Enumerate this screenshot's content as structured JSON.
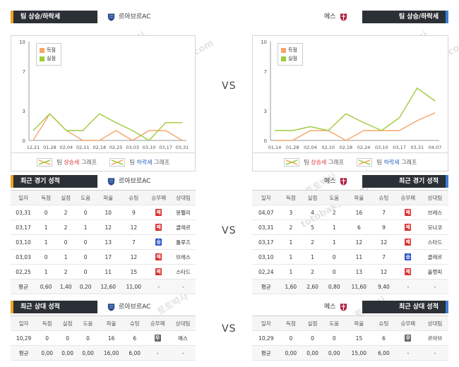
{
  "vs_label": "VS",
  "watermarks": [
    "토토박사",
    "totobaksa.com"
  ],
  "left_team": {
    "name": "르아브르AC"
  },
  "right_team": {
    "name": "메스"
  },
  "trend": {
    "left_title": "팀 상승/하락세",
    "right_title": "팀 상승/하락세",
    "legend_scored": "득점",
    "legend_conceded": "실점",
    "bottom_legend": {
      "prefix": "팀",
      "up": "상승세",
      "down": "하락세",
      "suffix": "그래프"
    }
  },
  "recent": {
    "left_title": "최근 경기 성적",
    "right_title": "최근 경기 성적",
    "headers": [
      "일자",
      "득점",
      "실점",
      "도움",
      "파울",
      "슈팅",
      "승무패",
      "상대팀"
    ],
    "left_rows": [
      [
        "03,31",
        "0",
        "2",
        "0",
        "10",
        "9",
        "패",
        "몽펠리"
      ],
      [
        "03,17",
        "1",
        "2",
        "1",
        "12",
        "12",
        "패",
        "클레르"
      ],
      [
        "03,10",
        "1",
        "0",
        "0",
        "13",
        "7",
        "승",
        "툴루즈"
      ],
      [
        "03,03",
        "0",
        "1",
        "0",
        "17",
        "12",
        "패",
        "브레스"
      ],
      [
        "02,25",
        "1",
        "2",
        "0",
        "11",
        "15",
        "패",
        "스타드"
      ]
    ],
    "left_avg": [
      "평균",
      "0,60",
      "1,40",
      "0,20",
      "12,60",
      "11,00",
      "-",
      "-"
    ],
    "right_rows": [
      [
        "04,07",
        "3",
        "4",
        "2",
        "16",
        "7",
        "패",
        "브레스"
      ],
      [
        "03,31",
        "2",
        "5",
        "1",
        "6",
        "9",
        "패",
        "모나코"
      ],
      [
        "03,17",
        "1",
        "2",
        "1",
        "12",
        "12",
        "패",
        "스타드"
      ],
      [
        "03,10",
        "1",
        "1",
        "0",
        "11",
        "7",
        "승",
        "클레르"
      ],
      [
        "02,24",
        "1",
        "2",
        "0",
        "13",
        "12",
        "패",
        "올랭피"
      ]
    ],
    "right_avg": [
      "평균",
      "1,60",
      "2,60",
      "0,80",
      "11,60",
      "9,40",
      "-",
      "-"
    ]
  },
  "h2h": {
    "left_title": "최근 상대 성적",
    "right_title": "최근 상대 성적",
    "headers": [
      "일자",
      "득점",
      "실점",
      "도움",
      "파울",
      "슈팅",
      "승무패",
      "상대팀"
    ],
    "left_rows": [
      [
        "10,29",
        "0",
        "0",
        "0",
        "16",
        "6",
        "무",
        "메스"
      ]
    ],
    "left_avg": [
      "평균",
      "0,00",
      "0,00",
      "0,00",
      "16,00",
      "6,00",
      "-",
      "-"
    ],
    "right_rows": [
      [
        "10,29",
        "0",
        "0",
        "0",
        "15",
        "6",
        "무",
        "르아브"
      ]
    ],
    "right_avg": [
      "평균",
      "0,00",
      "0,00",
      "0,00",
      "15,00",
      "6,00",
      "-",
      "-"
    ]
  },
  "colors": {
    "scored": "#f5a66a",
    "conceded": "#9ccc3a",
    "win": "#2a55c8",
    "lose": "#d83030",
    "draw": "#666666"
  },
  "chart_data": [
    {
      "type": "line",
      "ylim": [
        0,
        10
      ],
      "yticks": [
        "0",
        "3",
        "7",
        "10"
      ],
      "x": [
        "12,21",
        "01,28",
        "02,04",
        "02,11",
        "02,18",
        "02,25",
        "03,03",
        "03,10",
        "03,17",
        "03,31"
      ],
      "series": [
        {
          "name": "득점",
          "values": [
            0,
            2.7,
            1,
            0,
            0,
            1,
            0,
            1,
            1,
            0
          ]
        },
        {
          "name": "실점",
          "values": [
            1,
            2.7,
            1,
            1,
            2.7,
            1.8,
            1,
            0,
            1.8,
            1.8
          ]
        }
      ]
    },
    {
      "type": "line",
      "ylim": [
        0,
        10
      ],
      "yticks": [
        "0",
        "3",
        "7",
        "10"
      ],
      "x": [
        "01,14",
        "01,28",
        "02,04",
        "02,10",
        "02,18",
        "02,24",
        "03,10",
        "03,17",
        "03,31",
        "04,07"
      ],
      "series": [
        {
          "name": "득점",
          "values": [
            0,
            0,
            1,
            1,
            0,
            1,
            1,
            1,
            2,
            2.8
          ]
        },
        {
          "name": "실점",
          "values": [
            1,
            1,
            1.4,
            1,
            2.7,
            1.8,
            1,
            2.3,
            5.3,
            4
          ]
        }
      ]
    }
  ]
}
